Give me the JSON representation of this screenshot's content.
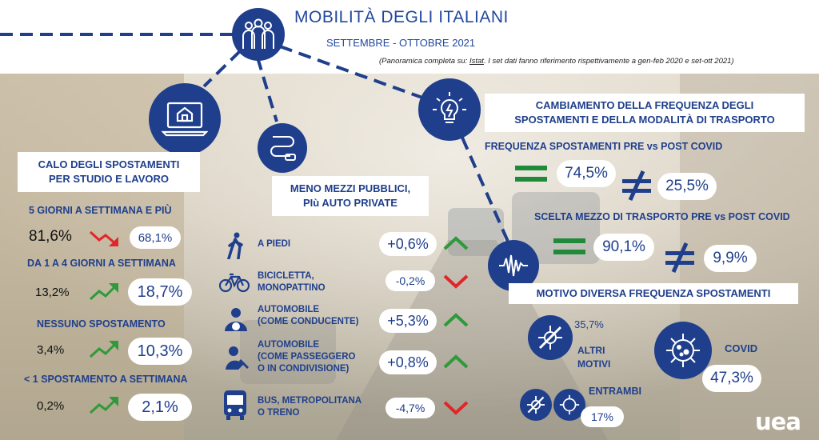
{
  "header": {
    "title": "MOBILITÀ DEGLI ITALIANI",
    "subtitle": "SETTEMBRE - OTTOBRE 2021",
    "note_prefix": "(Panoramica completa su: ",
    "note_link": "Istat",
    "note_suffix": ". I set dati fanno riferimento rispettivamente a gen-feb 2020 e set-ott 2021)"
  },
  "left": {
    "heading_line1": "CALO DEGLI SPOSTAMENTI",
    "heading_line2": "PER STUDIO E LAVORO",
    "rows": [
      {
        "label": "5 GIORNI A SETTIMANA E PIÙ",
        "before": "81,6%",
        "after": "68,1%",
        "trend": "down"
      },
      {
        "label": "DA 1 A 4 GIORNI A SETTIMANA",
        "before": "13,2%",
        "after": "18,7%",
        "trend": "up"
      },
      {
        "label": "NESSUNO SPOSTAMENTO",
        "before": "3,4%",
        "after": "10,3%",
        "trend": "up"
      },
      {
        "label": "< 1 SPOSTAMENTO A SETTIMANA",
        "before": "0,2%",
        "after": "2,1%",
        "trend": "up"
      }
    ]
  },
  "middle": {
    "heading_line1": "MENO MEZZI PUBBLICI,",
    "heading_line2": "PIù AUTO PRIVATE",
    "modes": [
      {
        "line1": "A PIEDI",
        "line2": "",
        "line3": "",
        "value": "+0,6%",
        "trend": "up",
        "icon": "walking-person-icon"
      },
      {
        "line1": "BICICLETTA,",
        "line2": "MONOPATTINO",
        "line3": "",
        "value": "-0,2%",
        "trend": "down",
        "icon": "bicycle-icon"
      },
      {
        "line1": "AUTOMOBILE",
        "line2": "(COME CONDUCENTE)",
        "line3": "",
        "value": "+5,3%",
        "trend": "up",
        "icon": "car-driver-icon"
      },
      {
        "line1": "AUTOMOBILE",
        "line2": "(COME PASSEGGERO",
        "line3": "O IN CONDIVISIONE)",
        "value": "+0,8%",
        "trend": "up",
        "icon": "car-passenger-icon"
      },
      {
        "line1": "BUS, METROPOLITANA",
        "line2": "O TRENO",
        "line3": "",
        "value": "-4,7%",
        "trend": "down",
        "icon": "bus-icon"
      }
    ]
  },
  "right": {
    "heading_line1": "CAMBIAMENTO DELLA FREQUENZA DEGLI",
    "heading_line2": "SPOSTAMENTI E DELLA MODALITÀ DI TRASPORTO",
    "freq_label": "FREQUENZA SPOSTAMENTI PRE vs POST COVID",
    "freq_same": "74,5%",
    "freq_diff": "25,5%",
    "mezzo_label": "SCELTA MEZZO DI TRASPORTO PRE vs POST COVID",
    "mezzo_same": "90,1%",
    "mezzo_diff": "9,9%",
    "motivo_heading": "MOTIVO DIVERSA FREQUENZA SPOSTAMENTI",
    "altri_line1": "ALTRI",
    "altri_line2": "MOTIVI",
    "altri_value": "35,7%",
    "covid_label": "COVID",
    "covid_value": "47,3%",
    "entrambi_label": "ENTRAMBI",
    "entrambi_value": "17%"
  },
  "brand": {
    "logo": "uea"
  },
  "colors": {
    "navy": "#1f3f8c",
    "up_green": "#2e9a3a",
    "down_red": "#e0262a",
    "equal_green": "#1e8a3a"
  }
}
